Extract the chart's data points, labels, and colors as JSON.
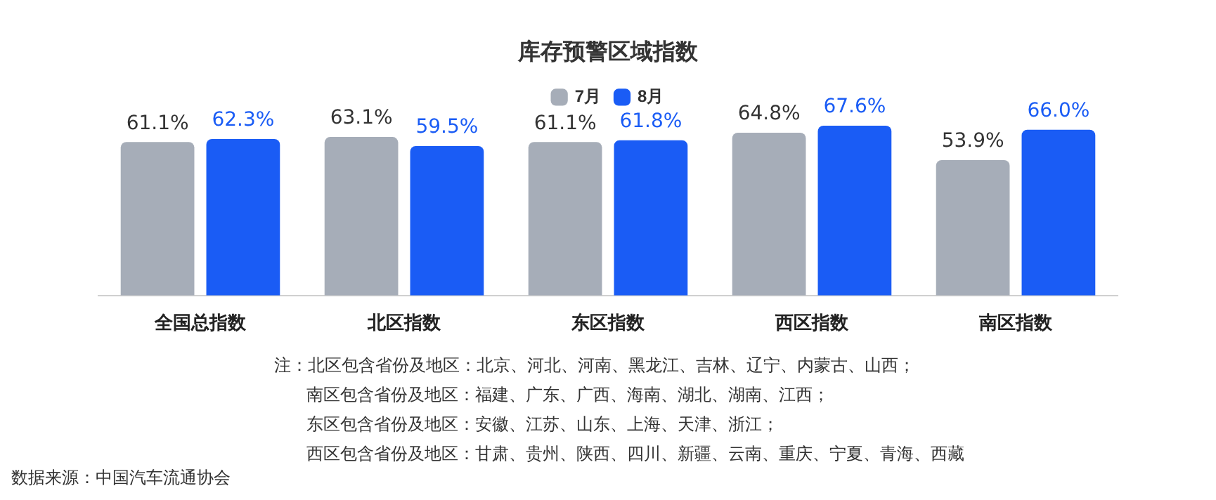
{
  "chart_data": {
    "type": "bar",
    "title": "库存预警区域指数",
    "categories": [
      "全国总指数",
      "北区指数",
      "东区指数",
      "西区指数",
      "南区指数"
    ],
    "series": [
      {
        "name": "7月",
        "color": "#a6adb8",
        "values": [
          61.1,
          63.1,
          61.1,
          64.8,
          53.9
        ],
        "value_labels": [
          "61.1%",
          "63.1%",
          "61.1%",
          "64.8%",
          "53.9%"
        ]
      },
      {
        "name": "8月",
        "color": "#1a5cf5",
        "values": [
          62.3,
          59.5,
          61.8,
          67.6,
          66.0
        ],
        "value_labels": [
          "62.3%",
          "59.5%",
          "61.8%",
          "67.6%",
          "66.0%"
        ]
      }
    ],
    "legend": "top",
    "grid": false,
    "annotations": [
      "注：北区包含省份及地区：北京、河北、河南、黑龙江、吉林、辽宁、内蒙古、山西；",
      "南区包含省份及地区：福建、广东、广西、海南、湖北、湖南、江西；",
      "东区包含省份及地区：安徽、江苏、山东、上海、天津、浙江；",
      "西区包含省份及地区：甘肃、贵州、陕西、四川、新疆、云南、重庆、宁夏、青海、西藏",
      "数据来源：中国汽车流通协会"
    ]
  }
}
